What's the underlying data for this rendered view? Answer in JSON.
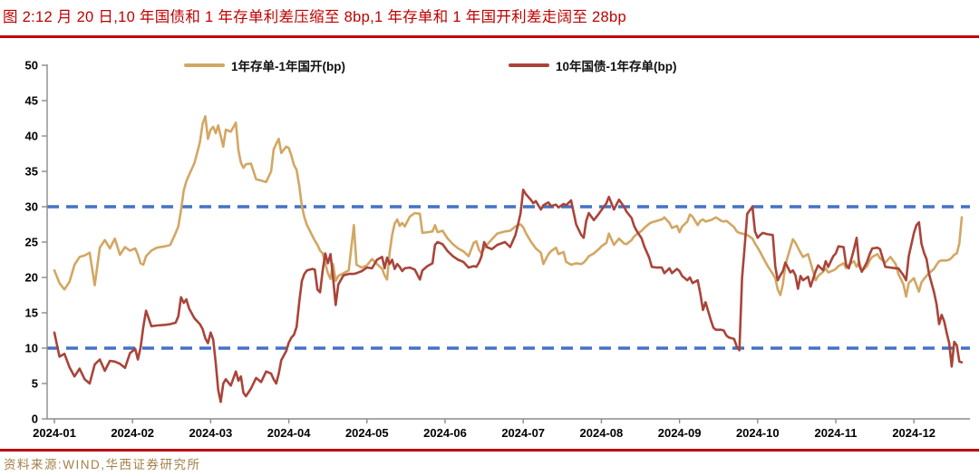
{
  "header": {},
  "footer": {
    "source": "资料来源:WIND,华西证券研究所"
  },
  "colors": {
    "title_red": "#C00000",
    "rule_red": "#C00000",
    "axis_gray": "#8C8C8C",
    "reference_blue": "#4472C4",
    "source_gold": "#A28049"
  },
  "chart_data": {
    "type": "line",
    "title": "图 2:12 月 20 日,10 年国债和 1 年存单利差压缩至 8bp,1 年存单和 1 年国开利差走阔至 28bp",
    "x_unit": "date (2024)",
    "ylim": [
      0,
      50
    ],
    "grid": "off",
    "legend_position": "top",
    "y_axis": {
      "ticks": [
        0,
        5,
        10,
        15,
        20,
        25,
        30,
        35,
        40,
        45,
        50
      ]
    },
    "x_axis": {
      "ticks": [
        "2024-01",
        "2024-02",
        "2024-03",
        "2024-04",
        "2024-05",
        "2024-06",
        "2024-07",
        "2024-08",
        "2024-09",
        "2024-10",
        "2024-11",
        "2024-12"
      ]
    },
    "reference_lines": [
      {
        "y": 30,
        "style": "dashed",
        "color": "#4472C4"
      },
      {
        "y": 10,
        "style": "dashed",
        "color": "#4472C4"
      }
    ],
    "series": [
      {
        "name": "1年存单-1年国开(bp)",
        "color": "#D2A763"
      },
      {
        "name": "10年国债-1年存单(bp)",
        "color": "#A94439"
      }
    ],
    "points": [
      [
        "01-01",
        21.0,
        12.2
      ],
      [
        "01-03",
        19.2,
        8.8
      ],
      [
        "01-05",
        18.3,
        9.2
      ],
      [
        "01-07",
        19.4,
        7.3
      ],
      [
        "01-09",
        21.8,
        6.0
      ],
      [
        "01-11",
        22.9,
        7.1
      ],
      [
        "01-13",
        23.1,
        5.6
      ],
      [
        "01-15",
        23.5,
        5.0
      ],
      [
        "01-17",
        18.9,
        7.7
      ],
      [
        "01-19",
        24.2,
        8.4
      ],
      [
        "01-21",
        25.3,
        6.8
      ],
      [
        "01-23",
        24.1,
        8.2
      ],
      [
        "01-25",
        25.5,
        8.1
      ],
      [
        "01-27",
        23.2,
        7.8
      ],
      [
        "01-29",
        24.3,
        7.2
      ],
      [
        "01-31",
        23.8,
        9.3
      ],
      [
        "02-02",
        24.1,
        9.9
      ],
      [
        "02-03",
        23.2,
        8.4
      ],
      [
        "02-04",
        22.0,
        10.1
      ],
      [
        "02-05",
        21.8,
        13.0
      ],
      [
        "02-06",
        23.0,
        15.3
      ],
      [
        "02-08",
        23.8,
        13.1
      ],
      [
        "02-10",
        24.2,
        13.2
      ],
      [
        "02-13",
        24.4,
        13.3
      ],
      [
        "02-15",
        24.6,
        13.4
      ],
      [
        "02-17",
        26.3,
        13.6
      ],
      [
        "02-18",
        27.2,
        14.5
      ],
      [
        "02-19",
        29.5,
        17.2
      ],
      [
        "02-20",
        32.3,
        16.4
      ],
      [
        "02-21",
        33.6,
        16.9
      ],
      [
        "02-22",
        34.5,
        15.6
      ],
      [
        "02-24",
        36.2,
        14.2
      ],
      [
        "02-26",
        39.1,
        13.4
      ],
      [
        "02-27",
        41.7,
        12.7
      ],
      [
        "02-28",
        42.8,
        11.4
      ],
      [
        "02-29",
        39.6,
        10.7
      ],
      [
        "03-01",
        40.9,
        12.2
      ],
      [
        "03-02",
        41.3,
        11.2
      ],
      [
        "03-03",
        40.4,
        7.9
      ],
      [
        "03-04",
        41.5,
        4.1
      ],
      [
        "03-05",
        40.0,
        2.4
      ],
      [
        "03-06",
        38.5,
        5.0
      ],
      [
        "03-07",
        40.9,
        5.6
      ],
      [
        "03-09",
        40.6,
        4.7
      ],
      [
        "03-11",
        41.9,
        6.7
      ],
      [
        "03-12",
        38.0,
        5.4
      ],
      [
        "03-13",
        36.2,
        6.0
      ],
      [
        "03-14",
        35.5,
        3.7
      ],
      [
        "03-15",
        36.0,
        3.2
      ],
      [
        "03-17",
        36.1,
        4.3
      ],
      [
        "03-19",
        33.9,
        5.8
      ],
      [
        "03-21",
        33.7,
        5.2
      ],
      [
        "03-23",
        33.5,
        6.7
      ],
      [
        "03-25",
        35.0,
        6.4
      ],
      [
        "03-26",
        38.1,
        5.6
      ],
      [
        "03-27",
        38.9,
        5.0
      ],
      [
        "03-28",
        39.6,
        6.4
      ],
      [
        "03-29",
        37.6,
        8.3
      ],
      [
        "03-31",
        38.5,
        9.6
      ],
      [
        "04-01",
        38.3,
        10.8
      ],
      [
        "04-02",
        37.2,
        11.5
      ],
      [
        "04-03",
        35.9,
        11.9
      ],
      [
        "04-04",
        35.2,
        13.0
      ],
      [
        "04-05",
        33.0,
        16.5
      ],
      [
        "04-06",
        30.1,
        19.5
      ],
      [
        "04-07",
        28.5,
        20.5
      ],
      [
        "04-08",
        27.4,
        21.0
      ],
      [
        "04-10",
        25.9,
        21.2
      ],
      [
        "04-11",
        25.2,
        21.1
      ],
      [
        "04-12",
        24.6,
        18.3
      ],
      [
        "04-13",
        23.8,
        17.9
      ],
      [
        "04-14",
        23.4,
        21.0
      ],
      [
        "04-15",
        22.0,
        23.4
      ],
      [
        "04-16",
        20.6,
        22.0
      ],
      [
        "04-17",
        19.8,
        23.3
      ],
      [
        "04-18",
        21.9,
        20.0
      ],
      [
        "04-19",
        19.5,
        16.1
      ],
      [
        "04-20",
        20.2,
        19.0
      ],
      [
        "04-22",
        20.6,
        20.3
      ],
      [
        "04-24",
        21.0,
        20.5
      ],
      [
        "04-26",
        27.4,
        20.5
      ],
      [
        "04-27",
        21.8,
        20.6
      ],
      [
        "04-29",
        21.4,
        20.9
      ],
      [
        "05-01",
        21.7,
        21.4
      ],
      [
        "05-03",
        22.6,
        21.3
      ],
      [
        "05-05",
        21.9,
        22.5
      ],
      [
        "05-07",
        21.2,
        22.9
      ],
      [
        "05-08",
        20.3,
        21.3
      ],
      [
        "05-09",
        19.7,
        22.8
      ],
      [
        "05-10",
        23.5,
        21.9
      ],
      [
        "05-11",
        26.0,
        22.5
      ],
      [
        "05-12",
        27.6,
        21.2
      ],
      [
        "05-13",
        28.2,
        21.9
      ],
      [
        "05-14",
        27.3,
        21.5
      ],
      [
        "05-15",
        27.7,
        20.9
      ],
      [
        "05-16",
        27.2,
        21.3
      ],
      [
        "05-18",
        28.6,
        21.4
      ],
      [
        "05-20",
        29.1,
        21.1
      ],
      [
        "05-22",
        29.0,
        19.7
      ],
      [
        "05-23",
        26.3,
        21.0
      ],
      [
        "05-25",
        26.4,
        21.6
      ],
      [
        "05-27",
        26.5,
        22.0
      ],
      [
        "05-28",
        27.4,
        24.6
      ],
      [
        "05-29",
        26.4,
        25.0
      ],
      [
        "05-31",
        26.6,
        24.7
      ],
      [
        "06-02",
        25.5,
        23.7
      ],
      [
        "06-04",
        24.7,
        23.0
      ],
      [
        "06-06",
        24.1,
        22.5
      ],
      [
        "06-08",
        23.7,
        22.2
      ],
      [
        "06-10",
        23.0,
        21.4
      ],
      [
        "06-12",
        24.9,
        21.6
      ],
      [
        "06-13",
        25.1,
        21.5
      ],
      [
        "06-14",
        23.9,
        22.1
      ],
      [
        "06-15",
        23.4,
        23.0
      ],
      [
        "06-16",
        24.1,
        25.0
      ],
      [
        "06-17",
        24.6,
        24.3
      ],
      [
        "06-19",
        25.4,
        24.0
      ],
      [
        "06-21",
        26.2,
        24.6
      ],
      [
        "06-24",
        26.5,
        25.0
      ],
      [
        "06-26",
        26.6,
        24.3
      ],
      [
        "06-28",
        27.2,
        26.0
      ],
      [
        "06-29",
        27.4,
        27.5
      ],
      [
        "06-30",
        27.5,
        29.1
      ],
      [
        "07-01",
        27.1,
        32.4
      ],
      [
        "07-02",
        26.3,
        31.8
      ],
      [
        "07-04",
        25.1,
        31.0
      ],
      [
        "07-05",
        24.6,
        30.5
      ],
      [
        "07-06",
        24.1,
        30.8
      ],
      [
        "07-08",
        23.5,
        29.6
      ],
      [
        "07-09",
        21.9,
        30.2
      ],
      [
        "07-11",
        23.3,
        30.6
      ],
      [
        "07-12",
        23.7,
        30.1
      ],
      [
        "07-14",
        24.2,
        30.3
      ],
      [
        "07-15",
        23.3,
        29.9
      ],
      [
        "07-17",
        23.6,
        30.4
      ],
      [
        "07-18",
        22.2,
        30.2
      ],
      [
        "07-20",
        21.8,
        30.9
      ],
      [
        "07-22",
        22.0,
        27.5
      ],
      [
        "07-24",
        21.9,
        26.0
      ],
      [
        "07-25",
        22.1,
        25.6
      ],
      [
        "07-26",
        22.5,
        28.0
      ],
      [
        "07-27",
        23.0,
        29.1
      ],
      [
        "07-29",
        23.4,
        28.1
      ],
      [
        "07-31",
        24.0,
        29.0
      ],
      [
        "08-01",
        24.4,
        29.5
      ],
      [
        "08-03",
        24.9,
        30.5
      ],
      [
        "08-04",
        26.2,
        31.4
      ],
      [
        "08-06",
        24.6,
        29.6
      ],
      [
        "08-08",
        25.5,
        31.0
      ],
      [
        "08-10",
        24.8,
        30.0
      ],
      [
        "08-11",
        24.7,
        29.3
      ],
      [
        "08-13",
        25.3,
        28.4
      ],
      [
        "08-14",
        25.8,
        27.3
      ],
      [
        "08-15",
        26.1,
        26.6
      ],
      [
        "08-17",
        26.6,
        25.5
      ],
      [
        "08-18",
        27.0,
        24.4
      ],
      [
        "08-20",
        27.6,
        22.8
      ],
      [
        "08-21",
        27.8,
        21.5
      ],
      [
        "08-23",
        28.0,
        21.4
      ],
      [
        "08-25",
        28.2,
        21.4
      ],
      [
        "08-26",
        28.5,
        20.6
      ],
      [
        "08-28",
        27.7,
        21.3
      ],
      [
        "08-29",
        27.0,
        20.6
      ],
      [
        "08-31",
        27.3,
        21.2
      ],
      [
        "09-01",
        26.4,
        20.9
      ],
      [
        "09-02",
        27.2,
        20.2
      ],
      [
        "09-04",
        27.9,
        19.6
      ],
      [
        "09-05",
        28.9,
        20.0
      ],
      [
        "09-06",
        28.6,
        19.2
      ],
      [
        "09-08",
        27.4,
        19.6
      ],
      [
        "09-09",
        28.0,
        17.7
      ],
      [
        "09-10",
        28.2,
        15.4
      ],
      [
        "09-11",
        27.9,
        16.5
      ],
      [
        "09-13",
        28.1,
        14.0
      ],
      [
        "09-14",
        28.3,
        12.9
      ],
      [
        "09-15",
        28.5,
        12.6
      ],
      [
        "09-17",
        28.0,
        12.6
      ],
      [
        "09-18",
        27.9,
        12.5
      ],
      [
        "09-19",
        28.0,
        11.8
      ],
      [
        "09-20",
        27.7,
        11.5
      ],
      [
        "09-22",
        27.1,
        11.3
      ],
      [
        "09-23",
        26.5,
        10.2
      ],
      [
        "09-24",
        26.3,
        9.7
      ],
      [
        "09-25",
        26.2,
        19.9
      ],
      [
        "09-26",
        26.1,
        24.2
      ],
      [
        "09-27",
        26.0,
        29.0
      ],
      [
        "09-29",
        25.5,
        30.0
      ],
      [
        "09-30",
        24.8,
        26.5
      ],
      [
        "10-01",
        24.2,
        25.6
      ],
      [
        "10-02",
        23.6,
        26.0
      ],
      [
        "10-03",
        22.9,
        26.3
      ],
      [
        "10-05",
        21.6,
        26.1
      ],
      [
        "10-07",
        20.5,
        26.0
      ],
      [
        "10-08",
        19.9,
        21.5
      ],
      [
        "10-09",
        18.3,
        19.6
      ],
      [
        "10-10",
        17.5,
        20.3
      ],
      [
        "10-11",
        19.0,
        20.9
      ],
      [
        "10-12",
        21.8,
        22.1
      ],
      [
        "10-14",
        24.2,
        20.7
      ],
      [
        "10-15",
        25.4,
        21.0
      ],
      [
        "10-16",
        24.9,
        20.3
      ],
      [
        "10-17",
        24.2,
        18.4
      ],
      [
        "10-18",
        23.5,
        20.2
      ],
      [
        "10-19",
        22.9,
        19.6
      ],
      [
        "10-21",
        23.3,
        20.1
      ],
      [
        "10-22",
        22.1,
        18.7
      ],
      [
        "10-24",
        19.6,
        20.9
      ],
      [
        "10-25",
        20.2,
        21.7
      ],
      [
        "10-27",
        20.8,
        21.0
      ],
      [
        "10-28",
        21.3,
        22.3
      ],
      [
        "10-29",
        20.7,
        21.5
      ],
      [
        "10-31",
        21.0,
        23.0
      ],
      [
        "11-01",
        21.2,
        23.4
      ],
      [
        "11-02",
        21.6,
        24.4
      ],
      [
        "11-04",
        22.0,
        24.3
      ],
      [
        "11-05",
        21.3,
        21.7
      ],
      [
        "11-06",
        21.8,
        21.3
      ],
      [
        "11-08",
        22.3,
        24.0
      ],
      [
        "11-09",
        21.5,
        25.6
      ],
      [
        "11-10",
        22.2,
        21.7
      ],
      [
        "11-11",
        20.9,
        20.8
      ],
      [
        "11-13",
        21.6,
        22.2
      ],
      [
        "11-14",
        22.4,
        23.3
      ],
      [
        "11-15",
        22.9,
        24.1
      ],
      [
        "11-17",
        23.3,
        24.2
      ],
      [
        "11-18",
        22.7,
        24.0
      ],
      [
        "11-20",
        22.1,
        21.5
      ],
      [
        "11-22",
        22.9,
        21.4
      ],
      [
        "11-24",
        21.9,
        21.3
      ],
      [
        "11-25",
        20.5,
        21.3
      ],
      [
        "11-26",
        19.8,
        20.8
      ],
      [
        "11-27",
        19.0,
        20.3
      ],
      [
        "11-28",
        17.3,
        19.6
      ],
      [
        "11-29",
        19.2,
        23.0
      ],
      [
        "12-01",
        19.9,
        26.3
      ],
      [
        "12-02",
        18.9,
        27.4
      ],
      [
        "12-03",
        18.0,
        27.8
      ],
      [
        "12-04",
        19.3,
        24.8
      ],
      [
        "12-05",
        19.8,
        23.5
      ],
      [
        "12-06",
        20.2,
        22.6
      ],
      [
        "12-07",
        20.6,
        20.5
      ],
      [
        "12-09",
        21.2,
        17.9
      ],
      [
        "12-10",
        21.8,
        16.2
      ],
      [
        "12-11",
        22.3,
        13.4
      ],
      [
        "12-12",
        22.4,
        14.7
      ],
      [
        "12-13",
        22.4,
        13.8
      ],
      [
        "12-14",
        22.4,
        12.2
      ],
      [
        "12-15",
        22.5,
        10.7
      ],
      [
        "12-16",
        22.8,
        7.4
      ],
      [
        "12-17",
        23.2,
        10.9
      ],
      [
        "12-18",
        23.4,
        10.4
      ],
      [
        "12-19",
        24.8,
        8.1
      ],
      [
        "12-20",
        28.5,
        8.0
      ]
    ]
  }
}
